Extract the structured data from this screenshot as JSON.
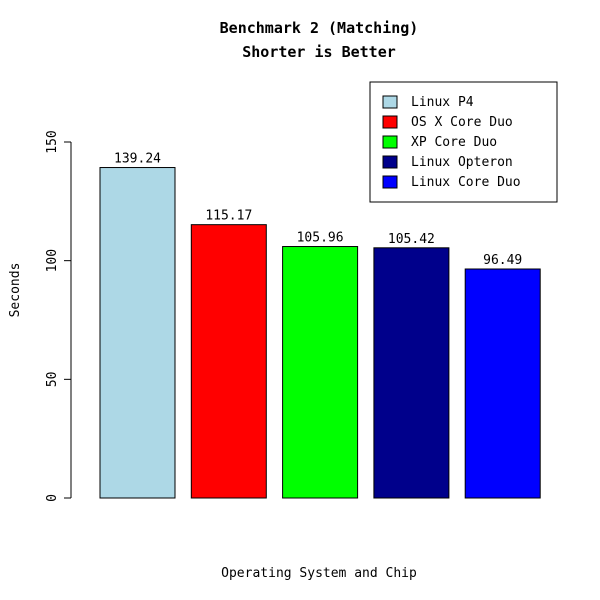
{
  "chart_data": {
    "type": "bar",
    "title": "Benchmark 2 (Matching)",
    "subtitle": "Shorter is Better",
    "xlabel": "Operating System and Chip",
    "ylabel": "Seconds",
    "categories": [
      "Linux P4",
      "OS X Core Duo",
      "XP Core Duo",
      "Linux Opteron",
      "Linux Core Duo"
    ],
    "values": [
      139.24,
      115.17,
      105.96,
      105.42,
      96.49
    ],
    "value_labels": [
      "139.24",
      "115.17",
      "105.96",
      "105.42",
      "96.49"
    ],
    "colors": [
      "#add8e6",
      "#ff0000",
      "#00ff00",
      "#00008b",
      "#0000ff"
    ],
    "ylim": [
      0,
      150
    ],
    "yticks": [
      0,
      50,
      100,
      150
    ],
    "ytick_labels": [
      "0",
      "50",
      "100",
      "150"
    ],
    "grid": false,
    "legend": {
      "position": "top-right",
      "entries": [
        "Linux P4",
        "OS X Core Duo",
        "XP Core Duo",
        "Linux Opteron",
        "Linux Core Duo"
      ]
    }
  }
}
